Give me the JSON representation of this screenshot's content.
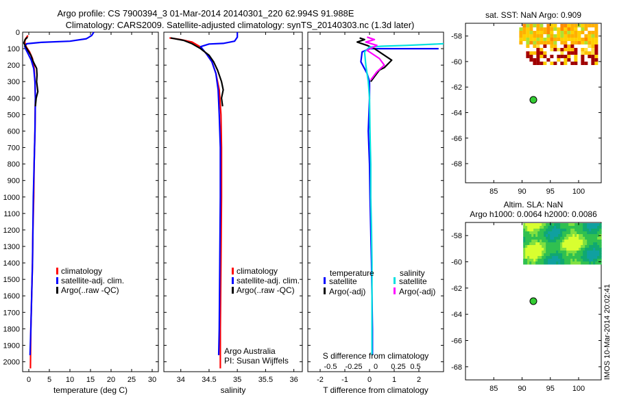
{
  "header": {
    "line1": "Argo profile: CS 7900394_3 01-Mar-2014 20140301_220 62.994S 91.988E",
    "line2": "Climatology: CARS2009. Satellite-adjusted climatology: synTS_20140303.nc (1.3d later)"
  },
  "side_stamp": "IMOS 10-Mar-2014 20:02:41",
  "chart_data": [
    {
      "id": "temperature",
      "type": "line",
      "xlabel": "temperature (deg C)",
      "xlim": [
        -1.5,
        31.5
      ],
      "xticks": [
        0,
        5,
        10,
        15,
        20,
        25,
        30
      ],
      "ylim": [
        0,
        2060
      ],
      "yticks": [
        0,
        100,
        200,
        300,
        400,
        500,
        600,
        700,
        800,
        900,
        1000,
        1100,
        1200,
        1300,
        1400,
        1500,
        1600,
        1700,
        1800,
        1900,
        2000
      ],
      "legend": [
        "climatology",
        "satellite-adj. clim.",
        "Argo(..raw -QC)"
      ],
      "series": [
        {
          "name": "climatology",
          "color": "#ff0000",
          "points": [
            [
              -0.2,
              20
            ],
            [
              -0.8,
              40
            ],
            [
              -1.0,
              60
            ],
            [
              -0.6,
              90
            ],
            [
              0.2,
              120
            ],
            [
              0.9,
              160
            ],
            [
              1.3,
              220
            ],
            [
              1.5,
              300
            ],
            [
              1.6,
              400
            ],
            [
              1.5,
              600
            ],
            [
              1.3,
              800
            ],
            [
              1.2,
              1000
            ],
            [
              1.0,
              1200
            ],
            [
              0.9,
              1400
            ],
            [
              0.7,
              1600
            ],
            [
              0.5,
              1800
            ],
            [
              0.4,
              2040
            ]
          ]
        },
        {
          "name": "satellite-adj. clim.",
          "color": "#0000ff",
          "points": [
            [
              15.8,
              0
            ],
            [
              15.3,
              20
            ],
            [
              14.0,
              40
            ],
            [
              10.0,
              55
            ],
            [
              3.0,
              62
            ],
            [
              -0.5,
              70
            ],
            [
              -1.0,
              85
            ],
            [
              -0.8,
              100
            ],
            [
              -0.2,
              130
            ],
            [
              0.6,
              170
            ],
            [
              1.2,
              220
            ],
            [
              1.5,
              300
            ],
            [
              1.6,
              400
            ],
            [
              1.5,
              600
            ],
            [
              1.3,
              800
            ],
            [
              1.1,
              1000
            ],
            [
              1.0,
              1200
            ],
            [
              0.9,
              1400
            ],
            [
              0.7,
              1600
            ],
            [
              0.5,
              1800
            ],
            [
              0.3,
              1960
            ]
          ]
        },
        {
          "name": "Argo(..raw -QC)",
          "color": "#000000",
          "points": [
            [
              -0.3,
              30
            ],
            [
              -0.9,
              45
            ],
            [
              -1.2,
              65
            ],
            [
              -0.7,
              90
            ],
            [
              0.5,
              140
            ],
            [
              1.1,
              180
            ],
            [
              1.9,
              220
            ],
            [
              2.0,
              260
            ],
            [
              1.9,
              300
            ],
            [
              2.2,
              360
            ],
            [
              1.8,
              400
            ],
            [
              1.6,
              450
            ]
          ]
        }
      ]
    },
    {
      "id": "salinity",
      "type": "line",
      "xlabel": "salinity",
      "xlim": [
        33.7,
        36.15
      ],
      "xticks": [
        34,
        34.5,
        35,
        35.5,
        36
      ],
      "xtick_labels": [
        "34",
        "34.5",
        "35",
        "35.5",
        "36"
      ],
      "ylim": [
        0,
        2060
      ],
      "legend": [
        "climatology",
        "satellite-adj. clim.",
        "Argo(..raw -QC)"
      ],
      "credit": [
        "Argo Australia",
        "PI: Susan Wijffels"
      ],
      "series": [
        {
          "name": "climatology",
          "color": "#ff0000",
          "points": [
            [
              33.8,
              35
            ],
            [
              34.0,
              45
            ],
            [
              34.2,
              60
            ],
            [
              34.35,
              90
            ],
            [
              34.45,
              130
            ],
            [
              34.55,
              180
            ],
            [
              34.62,
              250
            ],
            [
              34.68,
              350
            ],
            [
              34.71,
              500
            ],
            [
              34.72,
              700
            ],
            [
              34.72,
              1000
            ],
            [
              34.71,
              1400
            ],
            [
              34.7,
              1800
            ],
            [
              34.7,
              2040
            ]
          ]
        },
        {
          "name": "satellite-adj. clim.",
          "color": "#0000ff",
          "points": [
            [
              35.0,
              0
            ],
            [
              35.0,
              30
            ],
            [
              34.95,
              55
            ],
            [
              34.75,
              68
            ],
            [
              34.5,
              72
            ],
            [
              34.35,
              88
            ],
            [
              34.45,
              130
            ],
            [
              34.55,
              180
            ],
            [
              34.62,
              250
            ],
            [
              34.66,
              350
            ],
            [
              34.68,
              500
            ],
            [
              34.7,
              700
            ],
            [
              34.7,
              1000
            ],
            [
              34.69,
              1400
            ],
            [
              34.68,
              1800
            ],
            [
              34.67,
              1960
            ]
          ]
        },
        {
          "name": "Argo(..raw -QC)",
          "color": "#000000",
          "points": [
            [
              33.82,
              35
            ],
            [
              34.05,
              50
            ],
            [
              34.2,
              70
            ],
            [
              34.35,
              100
            ],
            [
              34.5,
              140
            ],
            [
              34.58,
              180
            ],
            [
              34.65,
              230
            ],
            [
              34.72,
              300
            ],
            [
              34.75,
              350
            ],
            [
              34.72,
              400
            ],
            [
              34.74,
              450
            ]
          ]
        }
      ]
    },
    {
      "id": "differences",
      "type": "line",
      "xlabel": "T difference from climatology",
      "xlim": [
        -2.5,
        3.0
      ],
      "xticks": [
        -2,
        -1,
        0,
        1,
        2
      ],
      "ylim": [
        0,
        2060
      ],
      "top_axis_label": "S difference from climatology",
      "top_ticks": [
        -0.5,
        -0.25,
        0,
        0.25,
        0.5
      ],
      "top_tick_labels": [
        "-0.5",
        "-0.25",
        "0",
        "0.25",
        "0.5"
      ],
      "legend_titles": [
        "temperature",
        "salinity"
      ],
      "legend_left": [
        "satellite",
        "Argo(-adj)"
      ],
      "legend_right": [
        "satellite",
        "Argo(-adj)"
      ],
      "series": [
        {
          "name": "temperature satellite",
          "color": "#0000ff",
          "points": [
            [
              2.8,
              100
            ],
            [
              1.0,
              100
            ],
            [
              0,
              100
            ],
            [
              -0.3,
              120
            ],
            [
              -0.35,
              180
            ],
            [
              -0.1,
              250
            ],
            [
              0,
              300
            ],
            [
              0,
              400
            ],
            [
              -0.05,
              600
            ],
            [
              0,
              800
            ],
            [
              0.02,
              1000
            ],
            [
              0.05,
              1200
            ],
            [
              0.08,
              1400
            ],
            [
              0.1,
              1600
            ],
            [
              0.12,
              1800
            ],
            [
              0.12,
              1960
            ]
          ]
        },
        {
          "name": "temperature Argo(-adj)",
          "color": "#000000",
          "points": [
            [
              -0.4,
              35
            ],
            [
              -0.2,
              45
            ],
            [
              -0.5,
              60
            ],
            [
              -0.1,
              80
            ],
            [
              0.2,
              100
            ],
            [
              0.9,
              170
            ],
            [
              0.6,
              215
            ],
            [
              0.4,
              230
            ],
            [
              0.2,
              270
            ],
            [
              0.05,
              300
            ]
          ]
        },
        {
          "name": "salinity satellite",
          "color": "#00e0e0",
          "points": [
            [
              3.0,
              70
            ],
            [
              1.5,
              80
            ],
            [
              0.5,
              85
            ],
            [
              0,
              90
            ],
            [
              -0.2,
              120
            ],
            [
              -0.15,
              200
            ],
            [
              -0.05,
              300
            ],
            [
              0,
              400
            ],
            [
              0.02,
              600
            ],
            [
              0.05,
              800
            ],
            [
              0.05,
              1000
            ],
            [
              0.08,
              1200
            ],
            [
              0.1,
              1400
            ],
            [
              0.1,
              1600
            ],
            [
              0.1,
              1800
            ],
            [
              0.1,
              1960
            ]
          ]
        },
        {
          "name": "salinity Argo(-adj)",
          "color": "#ff00ff",
          "points": [
            [
              -0.1,
              30
            ],
            [
              0.2,
              45
            ],
            [
              -0.15,
              60
            ],
            [
              0.3,
              80
            ],
            [
              -0.1,
              110
            ],
            [
              0.4,
              160
            ],
            [
              0.6,
              200
            ],
            [
              0.3,
              240
            ],
            [
              0.05,
              290
            ]
          ]
        }
      ]
    },
    {
      "id": "map_sst",
      "type": "heatmap",
      "title": "sat. SST: NaN Argo: 0.909",
      "xlim": [
        80,
        104
      ],
      "ylim": [
        -69.5,
        -57
      ],
      "xticks": [
        85,
        90,
        95,
        100
      ],
      "yticks": [
        -58,
        -60,
        -62,
        -64,
        -66,
        -68
      ],
      "argo_position": [
        92,
        -63
      ]
    },
    {
      "id": "map_sla",
      "type": "heatmap",
      "title_lines": [
        "Altim. SLA: NaN",
        "Argo h1000: 0.0064 h2000: 0.0086"
      ],
      "xlim": [
        80,
        104
      ],
      "ylim": [
        -69,
        -57
      ],
      "xticks": [
        85,
        90,
        95,
        100
      ],
      "yticks": [
        -58,
        -60,
        -62,
        -64,
        -66,
        -68
      ],
      "argo_position": [
        92,
        -63
      ]
    }
  ]
}
